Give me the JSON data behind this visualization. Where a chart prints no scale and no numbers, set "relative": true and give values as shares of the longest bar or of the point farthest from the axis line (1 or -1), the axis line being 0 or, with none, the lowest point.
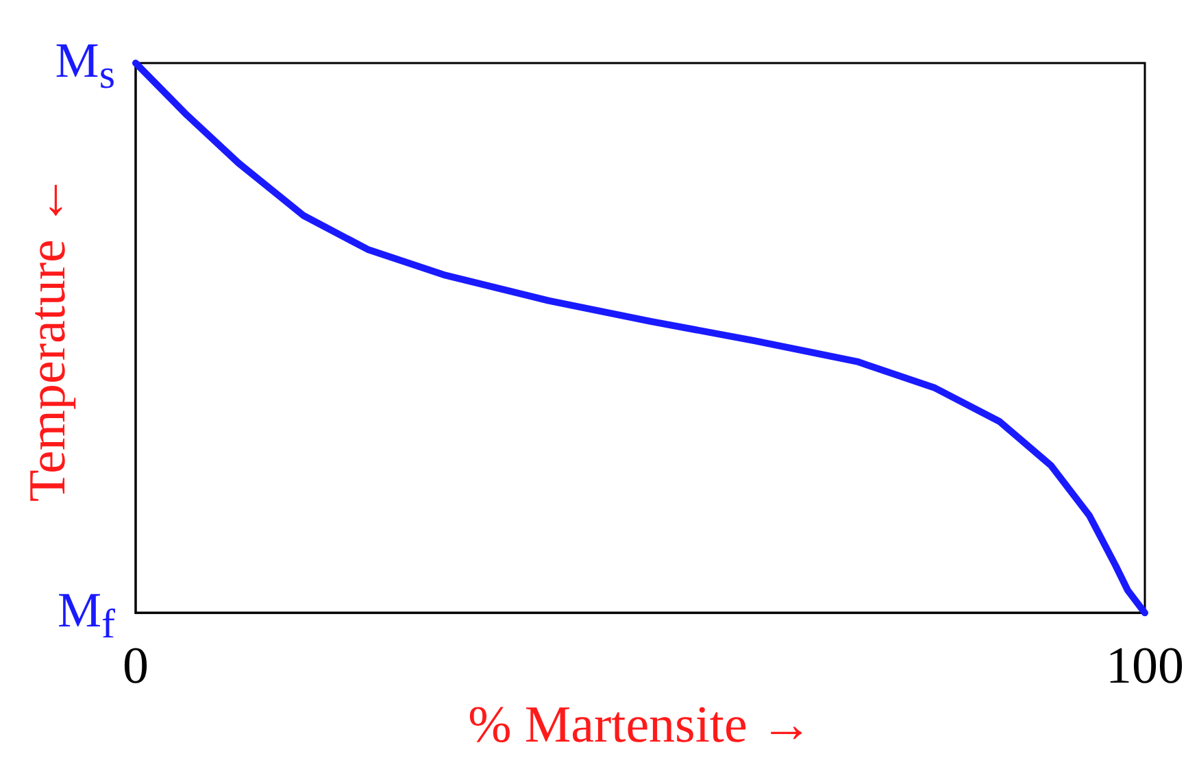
{
  "chart_data": {
    "type": "line",
    "xlabel": "% Martensite →",
    "ylabel": "Temperature ←",
    "x": [
      0,
      5.1,
      10.2,
      16.6,
      23,
      30.7,
      40.9,
      51.1,
      61.3,
      71.5,
      79.2,
      85.6,
      90.7,
      94.5,
      97.1,
      98.3,
      100
    ],
    "series": [
      {
        "color": "#1a1aff",
        "values": [
          1,
          0.905,
          0.818,
          0.723,
          0.661,
          0.614,
          0.568,
          0.53,
          0.495,
          0.457,
          0.409,
          0.348,
          0.268,
          0.177,
          0.086,
          0.041,
          0
        ]
      }
    ],
    "xlim": [
      0,
      100
    ],
    "xticks": [
      0,
      100
    ],
    "relative": true,
    "annotations": [
      "M$_{s}$",
      "M$_{f}$"
    ],
    "grid": false,
    "marker": "none",
    "line_style": "solid"
  }
}
